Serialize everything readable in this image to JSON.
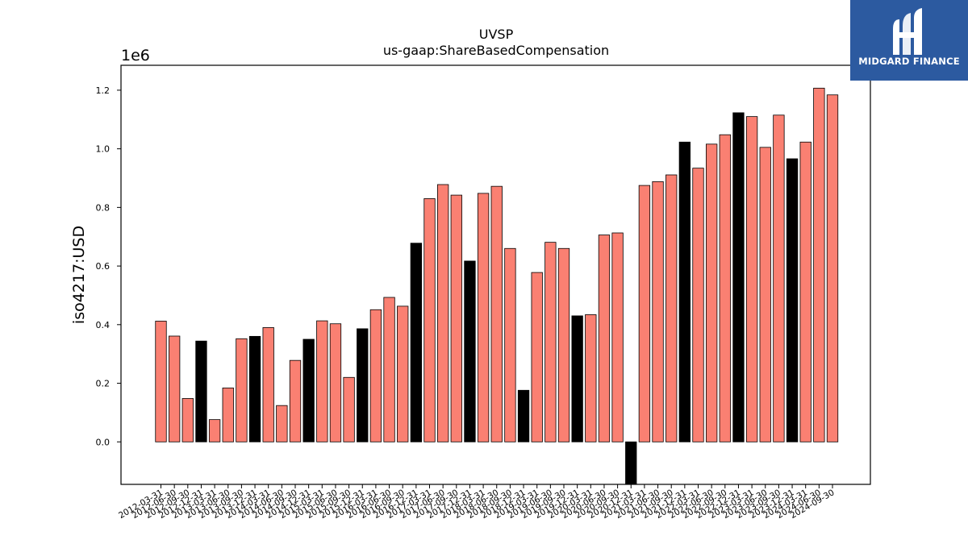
{
  "logo": {
    "text": "MIDGARD FINANCE",
    "icon": "midgard-m-logo-icon",
    "background": "#2c5aa0"
  },
  "chart_data": {
    "type": "bar",
    "title": "UVSP",
    "subtitle": "us-gaap:ShareBasedCompensation",
    "ylabel": "iso4217:USD",
    "xlabel": "",
    "y_multiplier_label": "1e6",
    "ylim": [
      -145000,
      1285000
    ],
    "yticks": [
      "0.0",
      "0.2",
      "0.4",
      "0.6",
      "0.8",
      "1.0",
      "1.2"
    ],
    "grid": false,
    "colors": {
      "quarter": "#fa8072",
      "q4": "#000000",
      "edge": "#000000"
    },
    "categories": [
      "2012-03-31",
      "2012-06-30",
      "2012-09-30",
      "2012-12-31",
      "2013-03-31",
      "2013-06-30",
      "2013-09-30",
      "2013-12-31",
      "2014-03-31",
      "2014-06-30",
      "2014-09-30",
      "2014-12-31",
      "2015-03-31",
      "2015-06-30",
      "2015-09-30",
      "2015-12-31",
      "2016-03-31",
      "2016-06-30",
      "2016-09-30",
      "2016-12-31",
      "2017-03-31",
      "2017-06-30",
      "2017-09-30",
      "2017-12-31",
      "2018-03-31",
      "2018-06-30",
      "2018-09-30",
      "2018-12-31",
      "2019-03-31",
      "2019-06-30",
      "2019-09-30",
      "2019-12-31",
      "2020-03-31",
      "2020-06-30",
      "2020-09-30",
      "2020-12-31",
      "2021-03-31",
      "2021-06-30",
      "2021-09-30",
      "2021-12-31",
      "2022-03-31",
      "2022-06-30",
      "2022-09-30",
      "2022-12-31",
      "2023-03-31",
      "2023-06-30",
      "2023-09-30",
      "2023-12-31",
      "2024-03-31",
      "2024-06-30",
      "2024-09-30"
    ],
    "values": [
      412000,
      361000,
      148000,
      344000,
      76000,
      184000,
      352000,
      360000,
      390000,
      124000,
      278000,
      350000,
      413000,
      403000,
      220000,
      386000,
      451000,
      493000,
      463000,
      678000,
      830000,
      878000,
      842000,
      617000,
      848000,
      872000,
      660000,
      176000,
      578000,
      681000,
      660000,
      430000,
      434000,
      706000,
      713000,
      -170000,
      875000,
      888000,
      911000,
      1023000,
      934000,
      1016000,
      1048000,
      1123000,
      1110000,
      1005000,
      1115000,
      966000,
      1023000,
      1207000,
      1184000
    ],
    "q4_flags": [
      false,
      false,
      false,
      true,
      false,
      false,
      false,
      true,
      false,
      false,
      false,
      true,
      false,
      false,
      false,
      true,
      false,
      false,
      false,
      true,
      false,
      false,
      false,
      true,
      false,
      false,
      false,
      true,
      false,
      false,
      false,
      true,
      false,
      false,
      false,
      true,
      false,
      false,
      false,
      true,
      false,
      false,
      false,
      true,
      false,
      false,
      false,
      true,
      false,
      false,
      false
    ]
  }
}
